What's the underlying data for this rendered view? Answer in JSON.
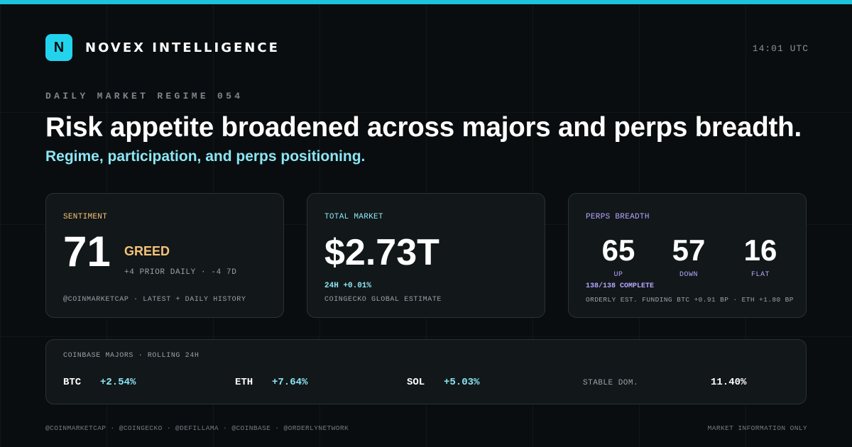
{
  "brand": {
    "logo_letter": "N",
    "name": "NOVEX INTELLIGENCE",
    "accent": "#22d3ee"
  },
  "clock": "14:01 UTC",
  "kicker": "DAILY MARKET REGIME 054",
  "headline": "Risk appetite broadened across majors and perps breadth.",
  "subhead": "Regime, participation, and perps positioning.",
  "sentiment": {
    "label": "SENTIMENT",
    "value": "71",
    "state": "GREED",
    "delta": "+4 PRIOR DAILY · -4 7D",
    "source": "@COINMARKETCAP · LATEST + DAILY HISTORY",
    "color": "#f5c27a"
  },
  "market": {
    "label": "TOTAL MARKET",
    "value": "$2.73T",
    "change": "24H +0.01%",
    "source": "COINGECKO GLOBAL ESTIMATE",
    "color": "#8be6f4"
  },
  "perps": {
    "label": "PERPS BREADTH",
    "up": {
      "value": "65",
      "label": "UP"
    },
    "down": {
      "value": "57",
      "label": "DOWN"
    },
    "flat": {
      "value": "16",
      "label": "FLAT"
    },
    "complete": "138/138 COMPLETE",
    "funding": "ORDERLY EST. FUNDING BTC +0.91 BP · ETH +1.80 BP",
    "color": "#b4a6ff"
  },
  "majors": {
    "label": "COINBASE MAJORS · ROLLING 24H",
    "items": [
      {
        "symbol": "BTC",
        "change": "+2.54%"
      },
      {
        "symbol": "ETH",
        "change": "+7.64%"
      },
      {
        "symbol": "SOL",
        "change": "+5.03%"
      }
    ],
    "stable_label": "STABLE DOM.",
    "stable_value": "11.40%"
  },
  "footer": {
    "sources": "@COINMARKETCAP · @COINGECKO · @DEFILLAMA · @COINBASE · @ORDERLYNETWORK",
    "disclaimer": "MARKET INFORMATION ONLY"
  }
}
